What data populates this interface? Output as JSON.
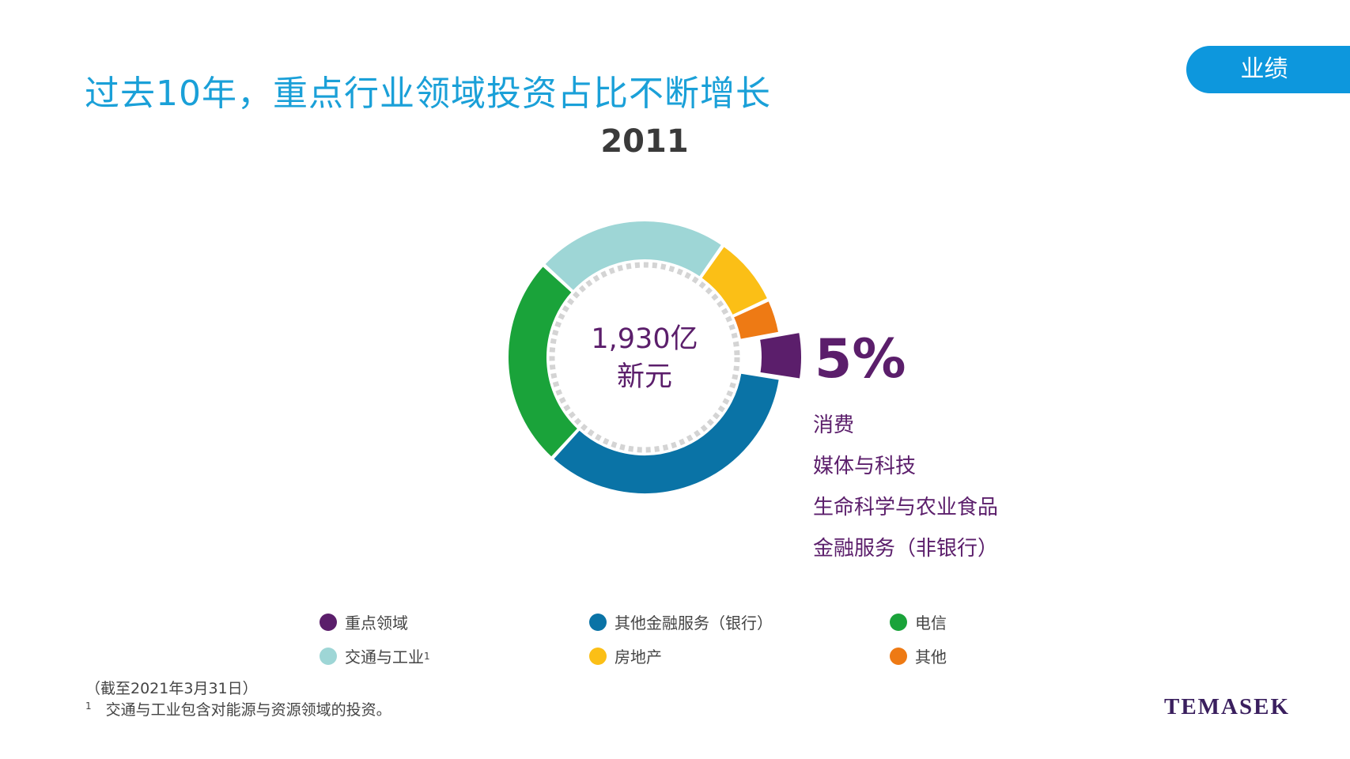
{
  "header": {
    "title": "过去10年，重点行业领域投资占比不断增长",
    "tab_label": "业绩"
  },
  "chart_data": {
    "type": "pie",
    "title": "2011",
    "center_value": "1,930亿",
    "center_unit": "新元",
    "highlight": {
      "label": "5%",
      "sectors": [
        "消费",
        "媒体与科技",
        "生命科学与农业食品",
        "金融服务（非银行）"
      ]
    },
    "categories": [
      "重点领域",
      "其他金融服务（银行）",
      "电信",
      "交通与工业",
      "房地产",
      "其他"
    ],
    "values": [
      5,
      33,
      24,
      22,
      8,
      4
    ],
    "colors": [
      "#5b1e6b",
      "#0a73a6",
      "#1aa33a",
      "#9ed6d6",
      "#fbbf16",
      "#ee7a14"
    ]
  },
  "legend": [
    {
      "label": "重点领域",
      "sup": "",
      "color": "#5b1e6b"
    },
    {
      "label": "其他金融服务（银行）",
      "sup": "",
      "color": "#0a73a6"
    },
    {
      "label": "电信",
      "sup": "",
      "color": "#1aa33a"
    },
    {
      "label": "交通与工业",
      "sup": "1",
      "color": "#9ed6d6"
    },
    {
      "label": "房地产",
      "sup": "",
      "color": "#fbbf16"
    },
    {
      "label": "其他",
      "sup": "",
      "color": "#ee7a14"
    }
  ],
  "footnotes": {
    "as_of": "（截至2021年3月31日）",
    "note_marker": "1",
    "note_text": "交通与工业包含对能源与资源领域的投资。"
  },
  "brand": "TEMASEK"
}
